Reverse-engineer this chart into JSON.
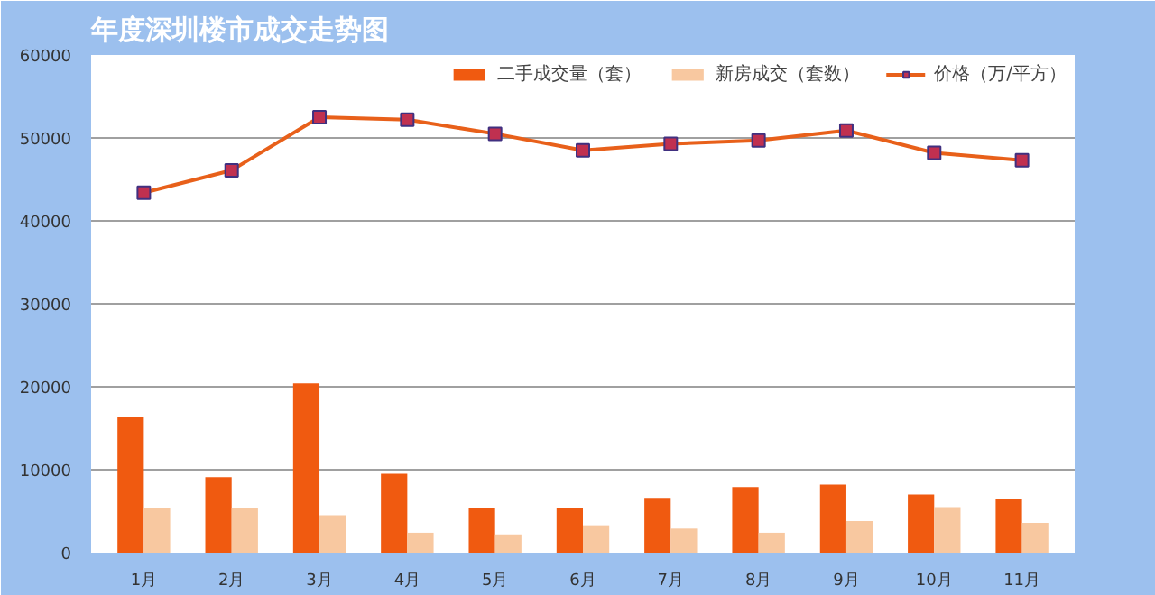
{
  "chart_data": {
    "type": "bar",
    "title": "年度深圳楼市成交走势图",
    "categories": [
      "1月",
      "2月",
      "3月",
      "4月",
      "5月",
      "6月",
      "7月",
      "8月",
      "9月",
      "10月",
      "11月"
    ],
    "series": [
      {
        "name": "二手成交量（套）",
        "color": "#f05a10",
        "values": [
          16400,
          9100,
          20400,
          9500,
          5400,
          5400,
          6600,
          7900,
          8200,
          7000,
          6500
        ]
      },
      {
        "name": "新房成交（套数）",
        "color": "#f8c8a0",
        "values": [
          5400,
          5400,
          4500,
          2400,
          2200,
          3300,
          2900,
          2400,
          3800,
          5500,
          3600
        ]
      },
      {
        "name": "价格（万/平方）",
        "type": "line",
        "color": "#e8601a",
        "marker": "square",
        "values": [
          43400,
          46100,
          52500,
          52200,
          50500,
          48500,
          49300,
          49700,
          50900,
          48200,
          47300
        ]
      }
    ],
    "ylim": [
      0,
      60000
    ],
    "yticks": [
      0,
      10000,
      20000,
      30000,
      40000,
      50000,
      60000
    ],
    "grid": "y",
    "legend": "top right"
  }
}
